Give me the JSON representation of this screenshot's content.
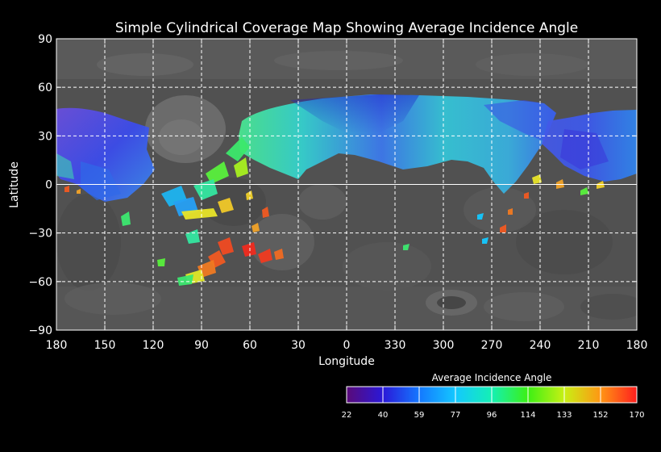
{
  "title": "Simple Cylindrical Coverage Map Showing Average Incidence Angle",
  "axes": {
    "xlabel": "Longitude",
    "ylabel": "Latitude",
    "x_ticks": [
      "180",
      "150",
      "120",
      "90",
      "60",
      "30",
      "0",
      "330",
      "300",
      "270",
      "240",
      "210",
      "180"
    ],
    "y_ticks": [
      "90",
      "60",
      "30",
      "0",
      "−30",
      "−60",
      "−90"
    ],
    "grid": true
  },
  "colorbar": {
    "title": "Average Incidence Angle",
    "labels": [
      "22",
      "40",
      "59",
      "77",
      "96",
      "114",
      "133",
      "152",
      "170"
    ],
    "colors": [
      "#5a0a78",
      "#2a18d8",
      "#1478ff",
      "#14c8ff",
      "#14f0b4",
      "#3cf014",
      "#c8f014",
      "#ff9614",
      "#ff1e1e"
    ]
  },
  "chart_data": {
    "type": "map",
    "projection": "simple cylindrical",
    "title": "Simple Cylindrical Coverage Map Showing Average Incidence Angle",
    "xlabel": "Longitude",
    "ylabel": "Latitude",
    "lon_ticks": [
      180,
      150,
      120,
      90,
      60,
      30,
      0,
      330,
      300,
      270,
      240,
      210,
      180
    ],
    "lat_ticks": [
      90,
      60,
      30,
      0,
      -30,
      -60,
      -90
    ],
    "lat_range": [
      -90,
      90
    ],
    "value_range": [
      22,
      170
    ],
    "colorbar_ticks": [
      22,
      40,
      59,
      77,
      96,
      114,
      133,
      152,
      170
    ],
    "coverage_regions": [
      {
        "name": "left-edge band",
        "lon_span": "180-117 W",
        "lat_range": [
          -10,
          46
        ],
        "avg_incidence": 45
      },
      {
        "name": "central band",
        "lon_span": "55 W - 260 E",
        "lat_range": [
          -5,
          56
        ],
        "avg_incidence": 75
      },
      {
        "name": "right band",
        "lon_span": "255-180 E",
        "lat_range": [
          0,
          47
        ],
        "avg_incidence": 55
      }
    ],
    "scattered_patches": [
      {
        "lon": 60,
        "lat": -35,
        "avg_incidence": 160
      },
      {
        "lon": 85,
        "lat": -50,
        "avg_incidence": 145
      },
      {
        "lon": 95,
        "lat": -58,
        "avg_incidence": 125
      },
      {
        "lon": 80,
        "lat": 10,
        "avg_incidence": 120
      },
      {
        "lon": 100,
        "lat": -15,
        "avg_incidence": 125
      },
      {
        "lon": 45,
        "lat": -40,
        "avg_incidence": 150
      },
      {
        "lon": 275,
        "lat": -20,
        "avg_incidence": 80
      }
    ]
  }
}
